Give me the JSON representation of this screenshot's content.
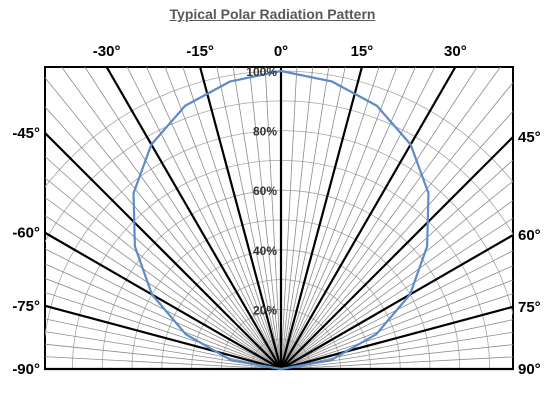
{
  "chart_data": {
    "type": "line",
    "subtype": "polar-semicircle",
    "title": "Typical Polar Radiation Pattern",
    "top_angle_labels": [
      "-30°",
      "-15°",
      "0°",
      "15°",
      "30°"
    ],
    "left_angle_labels": [
      "-45°",
      "-60°",
      "-75°",
      "-90°"
    ],
    "right_angle_labels": [
      "45°",
      "60°",
      "75°",
      "90°"
    ],
    "radial_labels": [
      "20%",
      "40%",
      "60%",
      "80%",
      "100%"
    ],
    "theta_range": [
      -90,
      90
    ],
    "r_range": [
      0,
      100
    ],
    "major_spoke_step_deg": 15,
    "minor_spoke_step_deg": 3,
    "ring_step_pct": 10,
    "series": [
      {
        "color": "#5B8BC9",
        "theta": [
          -90,
          -80,
          -70,
          -60,
          -50,
          -40,
          -30,
          -20,
          -10,
          0,
          10,
          20,
          30,
          40,
          50,
          60,
          70,
          80,
          90
        ],
        "r": [
          0,
          17,
          34,
          50,
          64,
          77,
          87,
          94,
          98,
          100,
          98,
          94,
          87,
          77,
          64,
          50,
          34,
          17,
          0
        ]
      }
    ],
    "grid": true
  }
}
